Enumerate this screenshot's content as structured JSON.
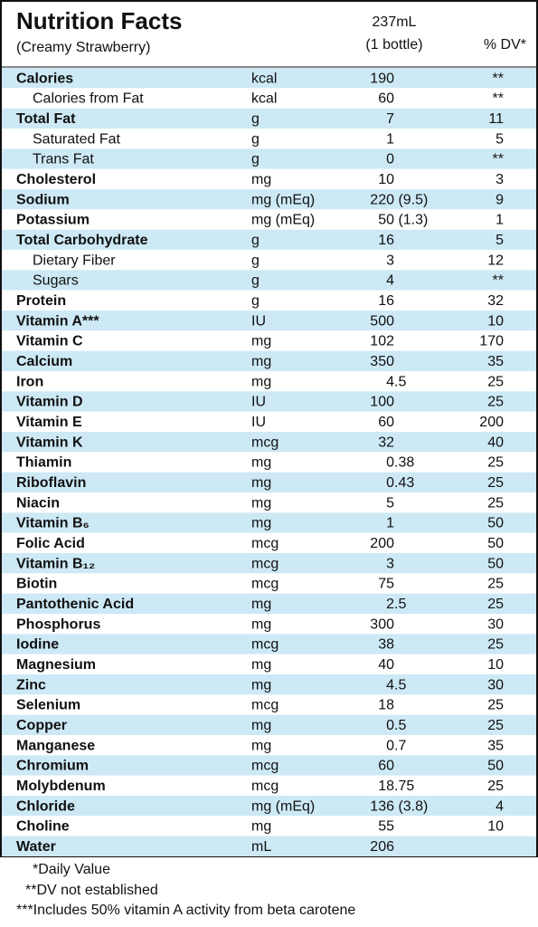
{
  "header": {
    "title": "Nutrition Facts",
    "subtitle": "(Creamy Strawberry)",
    "serving": [
      "237mL",
      "(1 bottle)"
    ],
    "dv_header": "% DV*"
  },
  "rows": [
    {
      "name": "Calories",
      "unit": "kcal",
      "amount": "190",
      "dv": "**",
      "bold": true
    },
    {
      "name": "Calories from Fat",
      "unit": "kcal",
      "amount": "60",
      "dv": "**",
      "indent": true
    },
    {
      "name": "Total Fat",
      "unit": "g",
      "amount": "7",
      "dv": "11",
      "bold": true
    },
    {
      "name": "Saturated Fat",
      "unit": "g",
      "amount": "1",
      "dv": "5",
      "indent": true
    },
    {
      "name": "Trans Fat",
      "unit": "g",
      "amount": "0",
      "dv": "**",
      "indent": true
    },
    {
      "name": "Cholesterol",
      "unit": "mg",
      "amount": "10",
      "dv": "3",
      "bold": true
    },
    {
      "name": "Sodium",
      "unit": "mg (mEq)",
      "amount": "220 (9.5)",
      "dv": "9",
      "bold": true
    },
    {
      "name": "Potassium",
      "unit": "mg (mEq)",
      "amount": "50 (1.3)",
      "dv": "1",
      "bold": true
    },
    {
      "name": "Total Carbohydrate",
      "unit": "g",
      "amount": "16",
      "dv": "5",
      "bold": true
    },
    {
      "name": "Dietary Fiber",
      "unit": "g",
      "amount": "3",
      "dv": "12",
      "indent": true
    },
    {
      "name": "Sugars",
      "unit": "g",
      "amount": "4",
      "dv": "**",
      "indent": true
    },
    {
      "name": "Protein",
      "unit": "g",
      "amount": "16",
      "dv": "32",
      "bold": true
    },
    {
      "name": "Vitamin A***",
      "unit": "IU",
      "amount": "500",
      "dv": "10",
      "bold": true
    },
    {
      "name": "Vitamin C",
      "unit": "mg",
      "amount": "102",
      "dv": "170",
      "bold": true
    },
    {
      "name": "Calcium",
      "unit": "mg",
      "amount": "350",
      "dv": "35",
      "bold": true
    },
    {
      "name": "Iron",
      "unit": "mg",
      "amount": "4.5",
      "dv": "25",
      "bold": true
    },
    {
      "name": "Vitamin D",
      "unit": "IU",
      "amount": "100",
      "dv": "25",
      "bold": true
    },
    {
      "name": "Vitamin E",
      "unit": "IU",
      "amount": "60",
      "dv": "200",
      "bold": true
    },
    {
      "name": "Vitamin K",
      "unit": "mcg",
      "amount": "32",
      "dv": "40",
      "bold": true
    },
    {
      "name": "Thiamin",
      "unit": "mg",
      "amount": "0.38",
      "dv": "25",
      "bold": true
    },
    {
      "name": "Riboflavin",
      "unit": "mg",
      "amount": "0.43",
      "dv": "25",
      "bold": true
    },
    {
      "name": "Niacin",
      "unit": "mg",
      "amount": "5",
      "dv": "25",
      "bold": true
    },
    {
      "name": "Vitamin B₆",
      "unit": "mg",
      "amount": "1",
      "dv": "50",
      "bold": true
    },
    {
      "name": "Folic Acid",
      "unit": "mcg",
      "amount": "200",
      "dv": "50",
      "bold": true
    },
    {
      "name": "Vitamin B₁₂",
      "unit": "mcg",
      "amount": "3",
      "dv": "50",
      "bold": true
    },
    {
      "name": "Biotin",
      "unit": "mcg",
      "amount": "75",
      "dv": "25",
      "bold": true
    },
    {
      "name": "Pantothenic Acid",
      "unit": "mg",
      "amount": "2.5",
      "dv": "25",
      "bold": true
    },
    {
      "name": "Phosphorus",
      "unit": "mg",
      "amount": "300",
      "dv": "30",
      "bold": true
    },
    {
      "name": "Iodine",
      "unit": "mcg",
      "amount": "38",
      "dv": "25",
      "bold": true
    },
    {
      "name": "Magnesium",
      "unit": "mg",
      "amount": "40",
      "dv": "10",
      "bold": true
    },
    {
      "name": "Zinc",
      "unit": "mg",
      "amount": "4.5",
      "dv": "30",
      "bold": true
    },
    {
      "name": "Selenium",
      "unit": "mcg",
      "amount": "18",
      "dv": "25",
      "bold": true
    },
    {
      "name": "Copper",
      "unit": "mg",
      "amount": "0.5",
      "dv": "25",
      "bold": true
    },
    {
      "name": "Manganese",
      "unit": "mg",
      "amount": "0.7",
      "dv": "35",
      "bold": true
    },
    {
      "name": "Chromium",
      "unit": "mcg",
      "amount": "60",
      "dv": "50",
      "bold": true
    },
    {
      "name": "Molybdenum",
      "unit": "mcg",
      "amount": "18.75",
      "dv": "25",
      "bold": true
    },
    {
      "name": "Chloride",
      "unit": "mg (mEq)",
      "amount": "136 (3.8)",
      "dv": "4",
      "bold": true
    },
    {
      "name": "Choline",
      "unit": "mg",
      "amount": "55",
      "dv": "10",
      "bold": true
    },
    {
      "name": "Water",
      "unit": "mL",
      "amount": "206",
      "bold": true
    }
  ],
  "footnotes": [
    "*Daily Value",
    "**DV not established",
    "***Includes 50% vitamin A activity from beta carotene"
  ]
}
